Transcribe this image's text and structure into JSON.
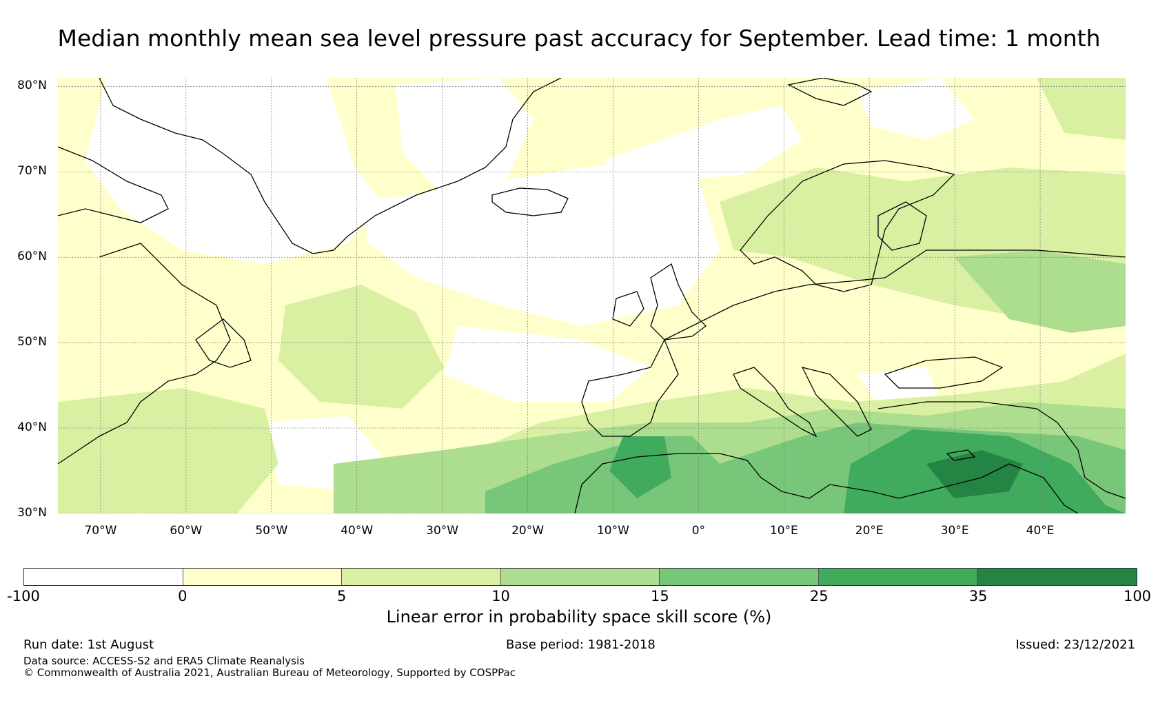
{
  "title": "Median monthly mean sea level pressure past accuracy for September. Lead time: 1 month",
  "map": {
    "lat_labels": [
      "80°N",
      "70°N",
      "60°N",
      "50°N",
      "40°N",
      "30°N"
    ],
    "lon_labels": [
      "70°W",
      "60°W",
      "50°W",
      "40°W",
      "30°W",
      "20°W",
      "10°W",
      "0°",
      "10°E",
      "20°E",
      "30°E",
      "40°E"
    ],
    "grid": true,
    "lat_range": [
      30,
      81
    ],
    "lon_range": [
      -75,
      50
    ]
  },
  "colorbar": {
    "ticks": [
      "-100",
      "0",
      "5",
      "10",
      "15",
      "25",
      "35",
      "100"
    ],
    "label": "Linear error in probability space skill score (%)",
    "bins": [
      {
        "range": [
          -100,
          0
        ],
        "color": "#ffffff"
      },
      {
        "range": [
          0,
          5
        ],
        "color": "#ffffcc"
      },
      {
        "range": [
          5,
          10
        ],
        "color": "#d9f0a3"
      },
      {
        "range": [
          10,
          15
        ],
        "color": "#addd8e"
      },
      {
        "range": [
          15,
          25
        ],
        "color": "#78c679"
      },
      {
        "range": [
          25,
          35
        ],
        "color": "#41ab5d"
      },
      {
        "range": [
          35,
          100
        ],
        "color": "#238443"
      }
    ]
  },
  "footer": {
    "run_date": "Run date: 1st August",
    "base_period": "Base period: 1981-2018",
    "issued": "Issued: 23/12/2021",
    "data_source": "Data source: ACCESS-S2 and ERA5 Climate Reanalysis",
    "copyright": "© Commonwealth of Australia 2021, Australian Bureau of Meteorology, Supported by COSPPac"
  }
}
